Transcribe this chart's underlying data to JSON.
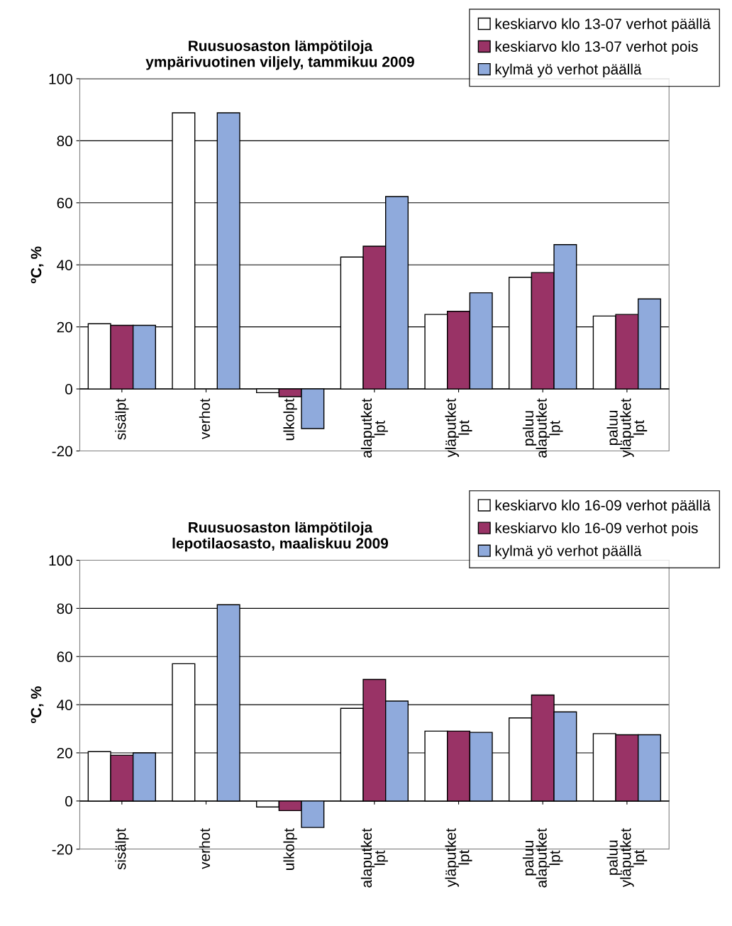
{
  "chart_data": [
    {
      "type": "bar",
      "title": "Ruusuosaston lämpötiloja\nympärivuotinen viljely, tammikuu 2009",
      "ylabel": "ºC, %",
      "categories": [
        "sisälpt",
        "verhot",
        "ulkolpt",
        "alaputket\nlpt",
        "yläputket\nlpt",
        "paluu\nalaputket\nlpt",
        "paluu\nyläputket\nlpt"
      ],
      "series": [
        {
          "name": "keskiarvo klo 13-07 verhot päällä",
          "color": "#ffffff",
          "values": [
            21,
            89,
            -1.2,
            42.5,
            24,
            36,
            23.5
          ]
        },
        {
          "name": "keskiarvo klo 13-07 verhot pois",
          "color": "#993366",
          "values": [
            20.5,
            null,
            -2.5,
            46,
            25,
            37.5,
            24
          ]
        },
        {
          "name": "kylmä yö verhot päällä",
          "color": "#8faadc",
          "values": [
            20.5,
            89,
            -12.8,
            62,
            31,
            46.5,
            29
          ]
        }
      ],
      "ylim": [
        -20,
        100
      ],
      "yticks": [
        -20,
        0,
        20,
        40,
        60,
        80,
        100
      ],
      "grid": "y",
      "legend": "top right"
    },
    {
      "type": "bar",
      "title": "Ruusuosaston lämpötiloja\nlepotilaosasto, maaliskuu 2009",
      "ylabel": "ºC, %",
      "categories": [
        "sisälpt",
        "verhot",
        "ulkolpt",
        "alaputket\nlpt",
        "yläputket\nlpt",
        "paluu\nalaputket\nlpt",
        "paluu\nyläputket\nlpt"
      ],
      "series": [
        {
          "name": "keskiarvo klo 16-09 verhot päällä",
          "color": "#ffffff",
          "values": [
            20.5,
            57,
            -2.5,
            38.5,
            29,
            34.5,
            28
          ]
        },
        {
          "name": "keskiarvo klo 16-09 verhot pois",
          "color": "#993366",
          "values": [
            19,
            null,
            -4,
            50.5,
            29,
            44,
            27.5
          ]
        },
        {
          "name": "kylmä yö verhot päällä",
          "color": "#8faadc",
          "values": [
            20,
            81.5,
            -11,
            41.5,
            28.5,
            37,
            27.5
          ]
        }
      ],
      "ylim": [
        -20,
        100
      ],
      "yticks": [
        -20,
        0,
        20,
        40,
        60,
        80,
        100
      ],
      "grid": "y",
      "legend": "top right"
    }
  ]
}
